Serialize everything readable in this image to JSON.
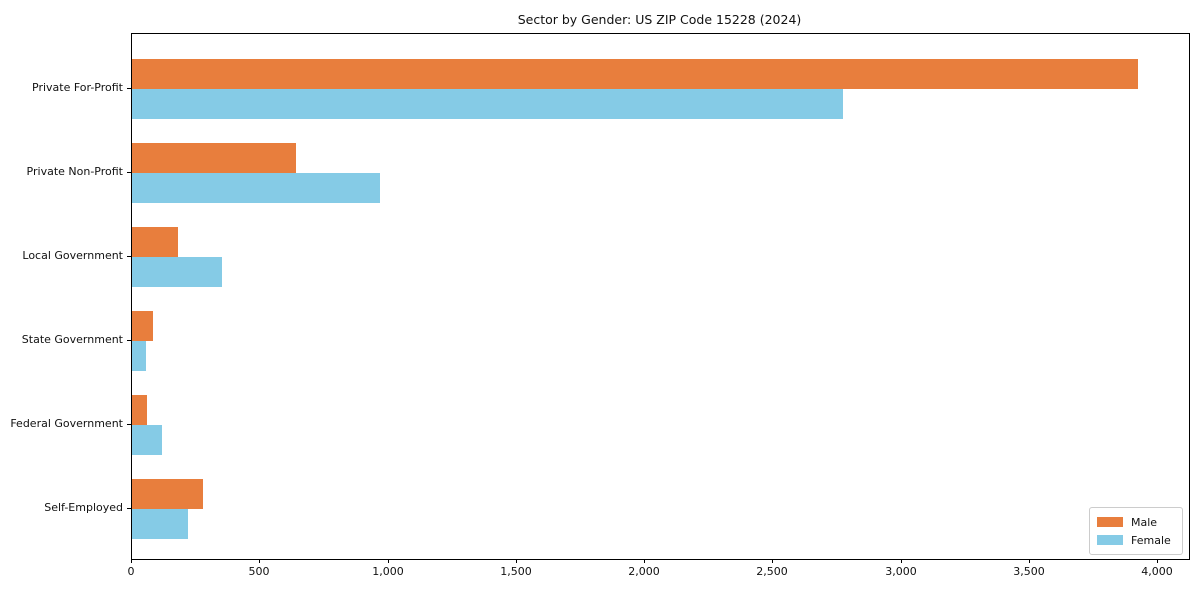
{
  "chart_data": {
    "type": "bar",
    "orientation": "horizontal",
    "title": "Sector by Gender: US ZIP Code 15228 (2024)",
    "categories": [
      "Private For-Profit",
      "Private Non-Profit",
      "Local Government",
      "State Government",
      "Federal Government",
      "Self-Employed"
    ],
    "series": [
      {
        "name": "Male",
        "color": "#e87e3d",
        "values": [
          3920,
          640,
          180,
          80,
          60,
          275
        ]
      },
      {
        "name": "Female",
        "color": "#85cbe6",
        "values": [
          2770,
          965,
          350,
          55,
          115,
          220
        ]
      }
    ],
    "xlabel": "",
    "ylabel": "",
    "xlim": [
      0,
      4120
    ],
    "xticks": [
      0,
      500,
      1000,
      1500,
      2000,
      2500,
      3000,
      3500,
      4000
    ],
    "xtick_labels": [
      "0",
      "500",
      "1,000",
      "1,500",
      "2,000",
      "2,500",
      "3,000",
      "3,500",
      "4,000"
    ],
    "grid": false,
    "legend_position": "lower right",
    "legend_entries": [
      "Male",
      "Female"
    ]
  }
}
